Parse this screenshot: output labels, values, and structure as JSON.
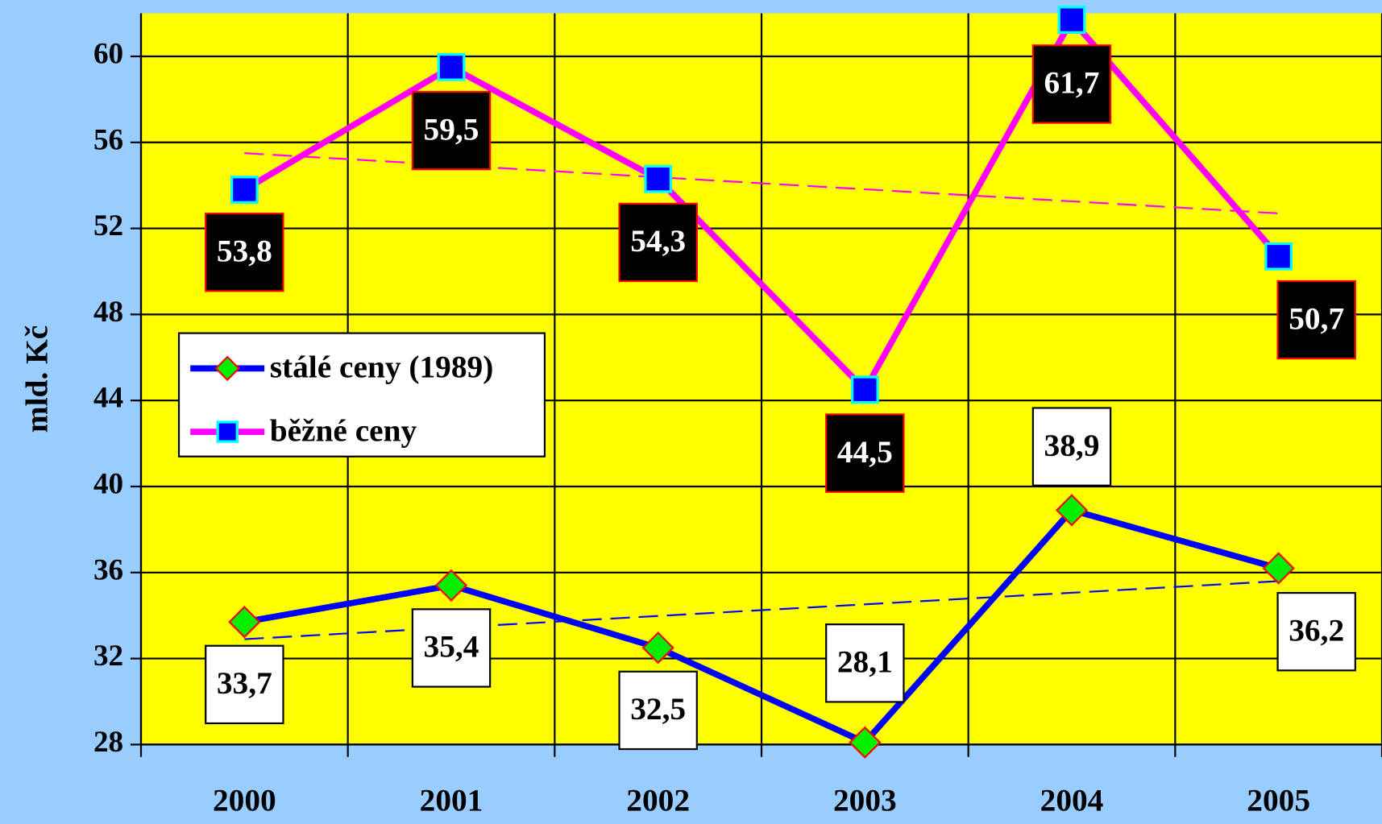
{
  "chart_data": {
    "type": "line",
    "y_label": "mld. Kč",
    "categories": [
      "2000",
      "2001",
      "2002",
      "2003",
      "2004",
      "2005"
    ],
    "ylim": [
      28,
      62
    ],
    "yticks": [
      28,
      32,
      36,
      40,
      44,
      48,
      52,
      56,
      60
    ],
    "grid": true,
    "legend": "left",
    "series": [
      {
        "name": "stálé ceny (1989)",
        "color": "#0000ff",
        "marker": "diamond",
        "marker_color": "#00ee00",
        "marker_edge": "#ff0000",
        "values": [
          33.7,
          35.4,
          32.5,
          28.1,
          38.9,
          36.2
        ],
        "value_labels": [
          "33,7",
          "35,4",
          "32,5",
          "28,1",
          "38,9",
          "36,2"
        ],
        "trend": [
          32.9,
          35.6
        ]
      },
      {
        "name": "běžné ceny",
        "color": "#ff00ff",
        "marker": "square",
        "marker_color": "#0000ff",
        "marker_edge": "#00ffff",
        "values": [
          53.8,
          59.5,
          54.3,
          44.5,
          61.7,
          50.7
        ],
        "value_labels": [
          "53,8",
          "59,5",
          "54,3",
          "44,5",
          "61,7",
          "50,7"
        ],
        "trend": [
          55.5,
          52.7
        ]
      }
    ]
  }
}
